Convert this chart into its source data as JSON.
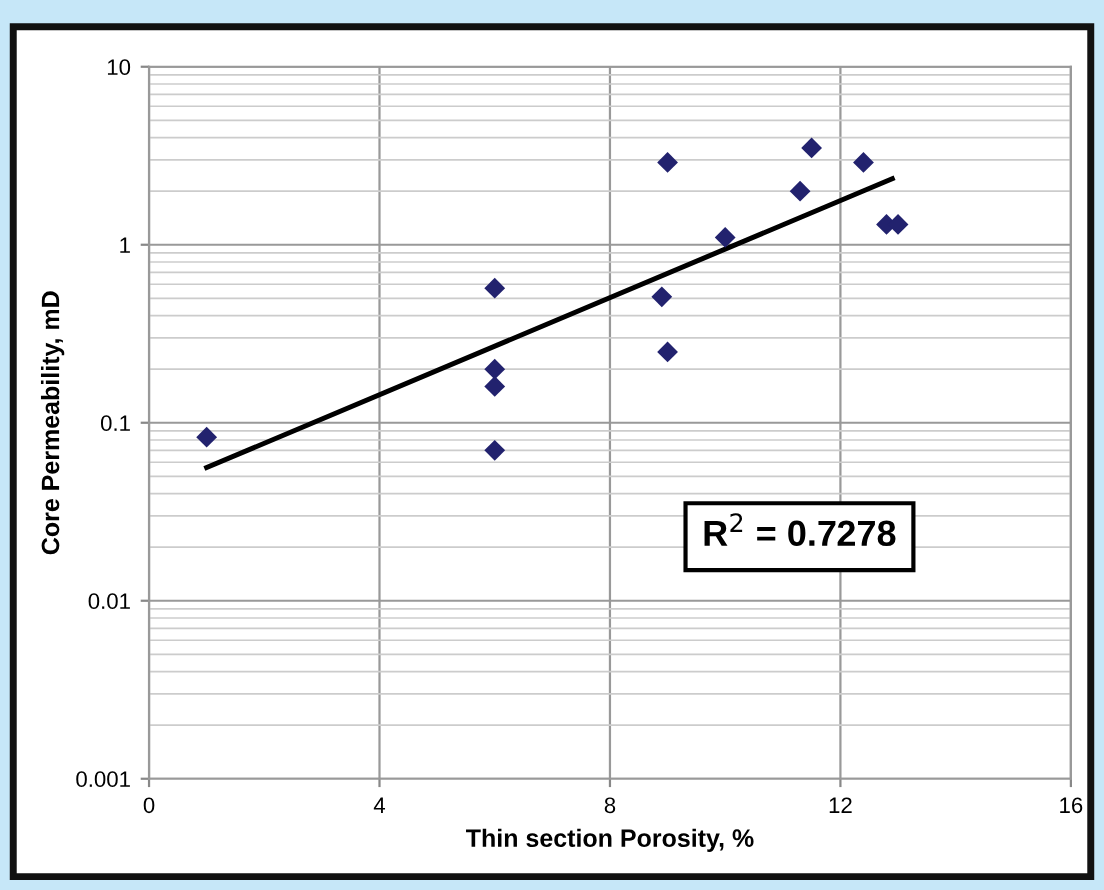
{
  "chart_data": {
    "type": "scatter",
    "xlabel": "Thin section Porosity, %",
    "ylabel": "Core Permeability, mD",
    "log": "y",
    "xlim": [
      0,
      16
    ],
    "xticks": [
      0,
      4,
      8,
      12,
      16
    ],
    "ylim": [
      0.001,
      10
    ],
    "yticks": [
      0.001,
      0.01,
      0.1,
      1,
      10
    ],
    "grid": true,
    "series": [
      {
        "marker": "diamond",
        "color": "#22226e",
        "x": [
          1,
          6,
          6,
          6,
          6,
          8.9,
          9,
          9,
          10,
          11.3,
          11.5,
          12.4,
          12.8,
          13
        ],
        "values": [
          0.083,
          0.57,
          0.2,
          0.16,
          0.07,
          0.51,
          2.9,
          0.25,
          1.1,
          2.0,
          3.5,
          2.9,
          1.3,
          1.3
        ]
      },
      {
        "type": "line",
        "marker": "none",
        "color": "#000000",
        "x": [
          1,
          12.9
        ],
        "values": [
          0.056,
          2.35
        ]
      }
    ],
    "annotations": [
      "R$^{2}$ = 0.7278"
    ]
  }
}
